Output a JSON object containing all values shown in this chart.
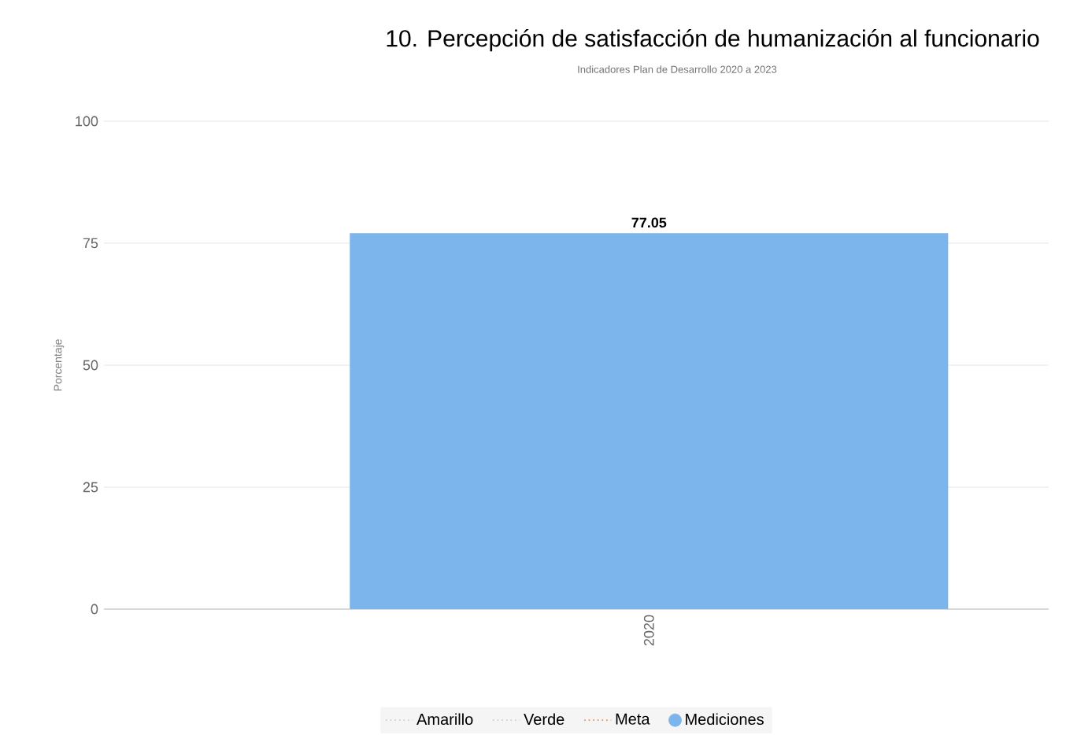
{
  "chart_data": {
    "type": "bar",
    "title": "10. Percepción de satisfacción de humanización al funcionario",
    "subtitle": "Indicadores Plan de Desarrollo 2020 a 2023",
    "ylabel": "Porcentaje",
    "categories": [
      "2020"
    ],
    "series": [
      {
        "name": "Amarillo",
        "type": "line",
        "color": "#cccccc",
        "line_style": "dotted",
        "values": [
          null
        ]
      },
      {
        "name": "Verde",
        "type": "line",
        "color": "#cccccc",
        "line_style": "dotted",
        "values": [
          null
        ]
      },
      {
        "name": "Meta",
        "type": "line",
        "color": "#f08a3c",
        "line_style": "dotted",
        "values": [
          null
        ]
      },
      {
        "name": "Mediciones",
        "color": "#7cb5ec",
        "values": [
          77.05
        ]
      }
    ],
    "ylim": [
      0,
      100
    ],
    "yticks": [
      0,
      25,
      50,
      75,
      100
    ],
    "grid": "y",
    "legend": "bottom",
    "data_labels": true
  }
}
